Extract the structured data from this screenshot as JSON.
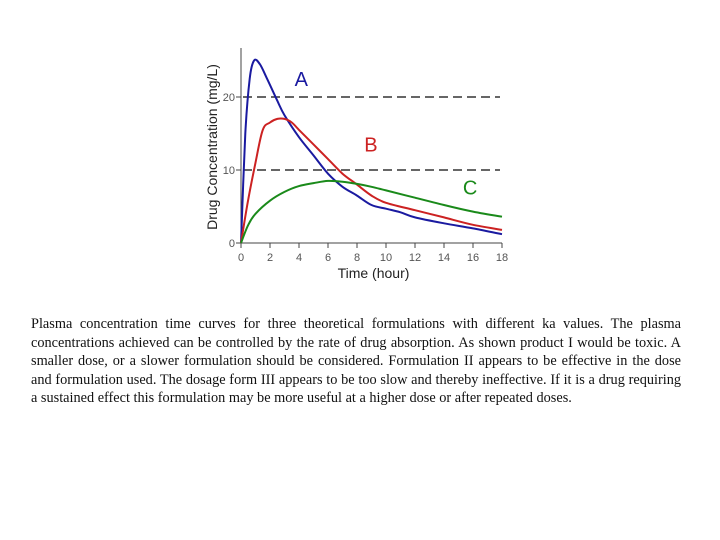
{
  "chart_data": {
    "type": "line",
    "xlabel": "Time (hour)",
    "ylabel": "Drug Concentration (mg/L)",
    "xlim": [
      0,
      18
    ],
    "ylim": [
      0,
      27
    ],
    "xticks": [
      0,
      2,
      4,
      6,
      8,
      10,
      12,
      14,
      16,
      18
    ],
    "yticks": [
      0,
      10,
      20
    ],
    "reference_lines": [
      20,
      10
    ],
    "grid": false,
    "series": [
      {
        "name": "A",
        "color": "#1a1aa0",
        "label_at": [
          3.7,
          22.5
        ],
        "points": [
          [
            0,
            0
          ],
          [
            0.3,
            15
          ],
          [
            0.6,
            22.5
          ],
          [
            0.9,
            25
          ],
          [
            1.3,
            24.5
          ],
          [
            1.8,
            22.5
          ],
          [
            2.5,
            19.5
          ],
          [
            3,
            17.5
          ],
          [
            4,
            14.5
          ],
          [
            5,
            12
          ],
          [
            6,
            9.5
          ],
          [
            7,
            7.7
          ],
          [
            8,
            6.5
          ],
          [
            9,
            5.2
          ],
          [
            10,
            4.7
          ],
          [
            11,
            4.2
          ],
          [
            12,
            3.5
          ],
          [
            14,
            2.7
          ],
          [
            16,
            2
          ],
          [
            18,
            1.2
          ]
        ]
      },
      {
        "name": "B",
        "color": "#cc2222",
        "label_at": [
          8.5,
          13.5
        ],
        "points": [
          [
            0,
            0
          ],
          [
            0.5,
            6
          ],
          [
            1,
            11
          ],
          [
            1.5,
            15.5
          ],
          [
            2,
            16.5
          ],
          [
            2.5,
            17
          ],
          [
            3,
            17
          ],
          [
            3.5,
            16.5
          ],
          [
            4,
            15.5
          ],
          [
            5,
            13.5
          ],
          [
            6,
            11.5
          ],
          [
            7,
            9.5
          ],
          [
            8,
            8
          ],
          [
            9,
            6.5
          ],
          [
            10,
            5.5
          ],
          [
            12,
            4.5
          ],
          [
            14,
            3.5
          ],
          [
            16,
            2.5
          ],
          [
            18,
            1.8
          ]
        ]
      },
      {
        "name": "C",
        "color": "#1a8a1a",
        "label_at": [
          15.3,
          7.6
        ],
        "points": [
          [
            0,
            0
          ],
          [
            0.5,
            2.5
          ],
          [
            1,
            4
          ],
          [
            2,
            5.8
          ],
          [
            3,
            7
          ],
          [
            4,
            7.8
          ],
          [
            5,
            8.2
          ],
          [
            6,
            8.5
          ],
          [
            7,
            8.4
          ],
          [
            8,
            8.1
          ],
          [
            9,
            7.7
          ],
          [
            10,
            7.2
          ],
          [
            12,
            6.2
          ],
          [
            14,
            5.2
          ],
          [
            16,
            4.3
          ],
          [
            18,
            3.6
          ]
        ]
      }
    ]
  },
  "caption": "Plasma concentration time curves for three theoretical formulations with different ka values. The plasma concentrations achieved can be controlled by the rate of drug absorption. As shown product I would be toxic. A smaller dose, or a slower formulation should be considered. Formulation II appears to be effective in the dose and formulation used. The dosage form III appears to be too slow and thereby ineffective. If it is a drug requiring a sustained effect this formulation may be more useful at a higher dose or after repeated doses."
}
